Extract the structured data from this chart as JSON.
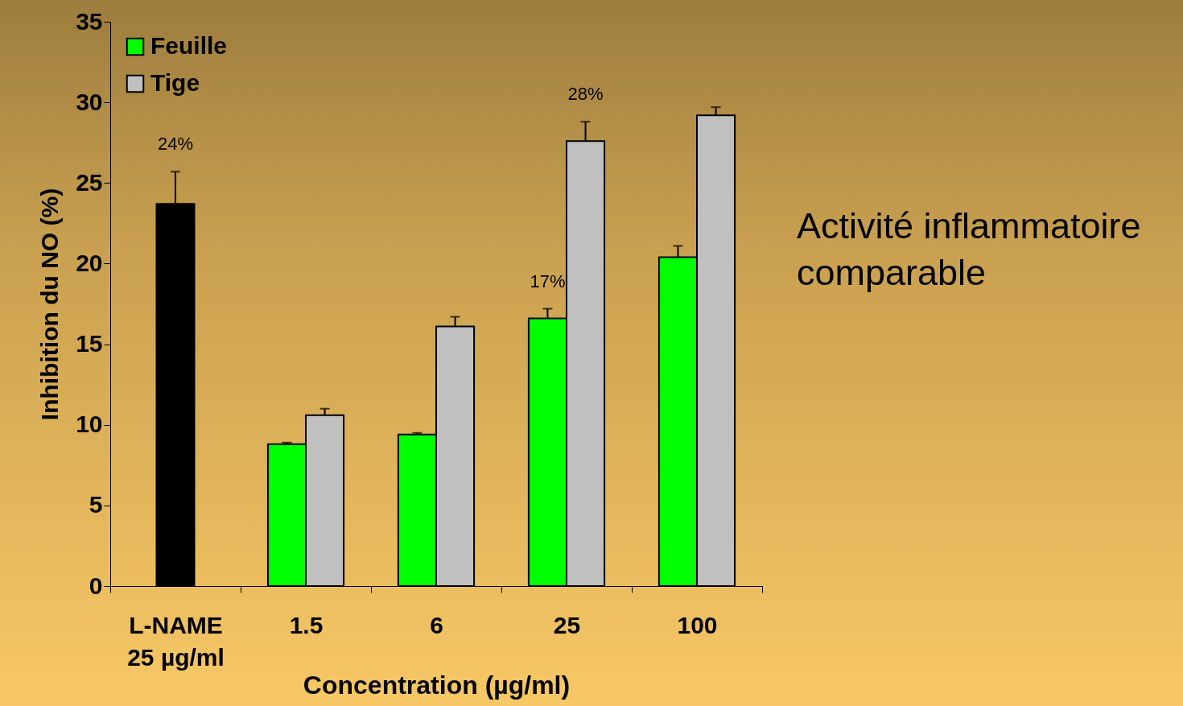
{
  "chart_data": {
    "type": "bar",
    "categories": [
      "L-NAME\n25 µg/ml",
      "1.5",
      "6",
      "25",
      "100"
    ],
    "series": [
      {
        "color": "#000000",
        "values": [
          23.7,
          null,
          null,
          null,
          null
        ],
        "errors": [
          [
            23.7,
            25.7
          ],
          null,
          null,
          null,
          null
        ],
        "value_labels": [
          "24%",
          null,
          null,
          null,
          null
        ]
      },
      {
        "name": "Feuille",
        "color": "#00ff00",
        "values": [
          null,
          8.8,
          9.4,
          16.6,
          20.4
        ],
        "errors": [
          null,
          [
            8.8,
            8.9
          ],
          [
            9.4,
            9.5
          ],
          [
            16.6,
            17.2
          ],
          [
            20.4,
            21.1
          ]
        ],
        "value_labels": [
          null,
          null,
          null,
          "17%",
          null
        ]
      },
      {
        "name": "Tige",
        "color": "#c0c0c0",
        "values": [
          null,
          10.6,
          16.1,
          27.6,
          29.2
        ],
        "errors": [
          null,
          [
            10.6,
            11.0
          ],
          [
            16.1,
            16.7
          ],
          [
            27.6,
            28.8
          ],
          [
            29.2,
            29.7
          ]
        ],
        "value_labels": [
          null,
          null,
          null,
          "28%",
          null
        ]
      }
    ],
    "xlabel": "Concentration (µg/ml)",
    "ylabel": "Inhibition du NO (%)",
    "ylim": [
      0,
      35
    ],
    "yticks": [
      0,
      5,
      10,
      15,
      20,
      25,
      30,
      35
    ],
    "legend": "top left",
    "annotations": [
      "Activité inflammatoire comparable"
    ]
  }
}
